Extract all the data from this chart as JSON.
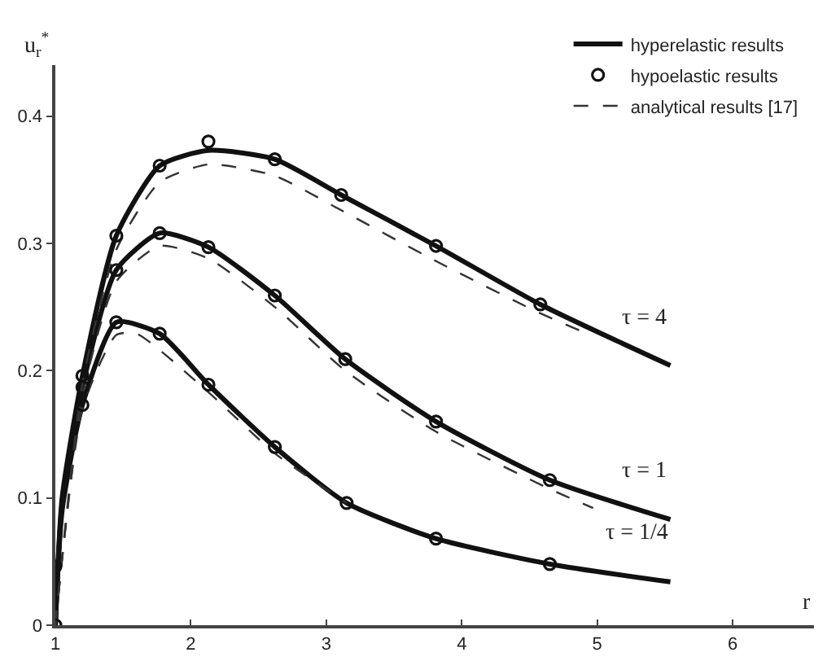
{
  "chart_data": {
    "type": "line",
    "xlabel": "r",
    "ylabel": "u$_{r}$$^{*}$",
    "xlim": [
      1,
      6.6
    ],
    "ylim": [
      0,
      0.44
    ],
    "xticks": [
      1,
      2,
      3,
      4,
      5,
      6
    ],
    "yticks": [
      0,
      0.1,
      0.2,
      0.3,
      0.4
    ],
    "grid": false,
    "legend": "top right",
    "annotations": [
      "τ = 4",
      "τ = 1",
      "τ = 1/4"
    ],
    "series": [
      {
        "name": "hyperelastic results",
        "color": "#111111",
        "line_style": "solid",
        "marker": "none",
        "x": [
          1,
          1.05,
          1.2,
          1.45,
          1.77,
          2.13,
          2.62,
          3.11,
          3.81,
          4.58,
          5.54
        ],
        "values": [
          0,
          0.1,
          0.196,
          0.306,
          0.361,
          0.373,
          0.366,
          0.338,
          0.298,
          0.252,
          0.204
        ]
      },
      {
        "color": "#111111",
        "line_style": "solid",
        "marker": "none",
        "x": [
          1,
          1.05,
          1.2,
          1.45,
          1.77,
          2.13,
          2.62,
          3.14,
          3.81,
          4.65,
          5.54
        ],
        "values": [
          0,
          0.095,
          0.187,
          0.279,
          0.308,
          0.297,
          0.259,
          0.209,
          0.16,
          0.114,
          0.083
        ]
      },
      {
        "color": "#111111",
        "line_style": "solid",
        "marker": "none",
        "x": [
          1,
          1.05,
          1.2,
          1.45,
          1.77,
          2.13,
          2.62,
          3.15,
          3.81,
          4.65,
          5.54
        ],
        "values": [
          0,
          0.09,
          0.173,
          0.238,
          0.229,
          0.189,
          0.14,
          0.096,
          0.068,
          0.048,
          0.034
        ]
      },
      {
        "name": "hypoelastic results",
        "type": "scatter",
        "color": "#111111",
        "marker": "circle",
        "x": [
          1.2,
          1.45,
          1.77,
          2.13,
          2.62,
          3.11,
          3.81,
          4.58
        ],
        "values": [
          0.196,
          0.306,
          0.361,
          0.38,
          0.366,
          0.338,
          0.298,
          0.252
        ]
      },
      {
        "type": "scatter",
        "color": "#111111",
        "marker": "circle",
        "x": [
          1.2,
          1.45,
          1.77,
          2.13,
          2.62,
          3.14,
          3.81,
          4.65
        ],
        "values": [
          0.187,
          0.279,
          0.308,
          0.297,
          0.259,
          0.209,
          0.16,
          0.114
        ]
      },
      {
        "type": "scatter",
        "color": "#111111",
        "marker": "circle",
        "x": [
          1,
          1,
          1.2,
          1.45,
          1.77,
          2.13,
          2.62,
          3.15,
          3.81,
          4.65
        ],
        "values": [
          0,
          0.046,
          0.173,
          0.238,
          0.229,
          0.189,
          0.14,
          0.096,
          0.068,
          0.048
        ]
      },
      {
        "name": "analytical results [17]",
        "color": "#333333",
        "line_style": "dashed",
        "marker": "none",
        "x": [
          1,
          1.2,
          1.45,
          1.77,
          2.13,
          2.62,
          3.11,
          3.81,
          4.58,
          4.95
        ],
        "values": [
          0,
          0.19,
          0.295,
          0.348,
          0.362,
          0.353,
          0.326,
          0.286,
          0.245,
          0.228
        ]
      },
      {
        "color": "#333333",
        "line_style": "dashed",
        "marker": "none",
        "x": [
          1,
          1.2,
          1.45,
          1.77,
          2.13,
          2.62,
          3.14,
          3.81,
          4.65,
          4.97
        ],
        "values": [
          0,
          0.18,
          0.27,
          0.298,
          0.288,
          0.25,
          0.2,
          0.152,
          0.107,
          0.092
        ]
      },
      {
        "color": "#333333",
        "line_style": "dashed",
        "marker": "none",
        "x": [
          1,
          1.2,
          1.45,
          1.6,
          2.13,
          2.62,
          3.15
        ],
        "values": [
          0,
          0.17,
          0.228,
          0.229,
          0.183,
          0.135,
          0.096
        ]
      }
    ]
  }
}
